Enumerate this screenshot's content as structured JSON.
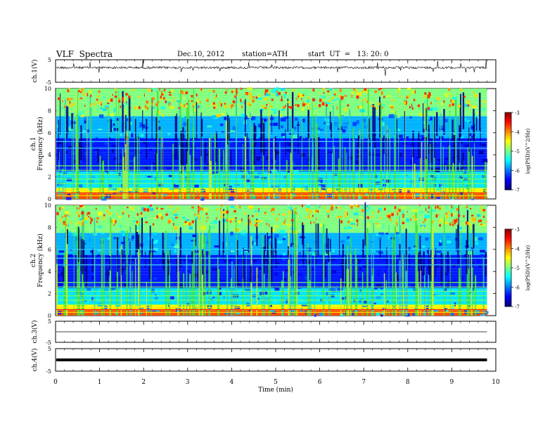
{
  "header": {
    "title": "VLF  Spectra",
    "date": "Dec.10, 2012",
    "station": "station=ATH",
    "start": "start  UT  =   13: 20: 0"
  },
  "chart_data": [
    {
      "type": "line",
      "ylabel": "ch.1(V)",
      "ylim": [
        -5,
        5
      ],
      "yticks": [
        "5",
        "-5"
      ],
      "xlim": [
        0,
        10
      ],
      "baseline_value": 1.5,
      "color": "#000000"
    },
    {
      "type": "heatmap",
      "ylabel": "ch.1",
      "ylabel2": "Frequency  (kHz)",
      "ylim": [
        0,
        10
      ],
      "yticks": [
        "0",
        "2",
        "4",
        "6",
        "8",
        "10"
      ],
      "xlim": [
        0,
        10
      ],
      "data_end_min": 9.8,
      "colorbar": {
        "label": "log(PSD)(V^2/Hz)",
        "range": [
          -7,
          -3
        ],
        "ticks": [
          "-3",
          "-4",
          "-5",
          "-6",
          "-7"
        ]
      }
    },
    {
      "type": "heatmap",
      "ylabel": "ch.2",
      "ylabel2": "Frequency  (kHz)",
      "ylim": [
        0,
        10
      ],
      "yticks": [
        "0",
        "2",
        "4",
        "6",
        "8",
        "10"
      ],
      "xlim": [
        0,
        10
      ],
      "data_end_min": 9.8,
      "colorbar": {
        "label": "log(PSD)(V^2/Hz)",
        "range": [
          -7,
          -3
        ],
        "ticks": [
          "-3",
          "-4",
          "-5",
          "-6",
          "-7"
        ]
      }
    },
    {
      "type": "line",
      "ylabel": "ch.3(V)",
      "ylim": [
        -5,
        5
      ],
      "yticks": [
        "5",
        "-5"
      ],
      "xlim": [
        0,
        10
      ],
      "baseline_value": 0,
      "color": "#000000"
    },
    {
      "type": "line",
      "ylabel": "ch.4(V)",
      "ylim": [
        -5,
        5
      ],
      "yticks": [
        "5",
        "-5"
      ],
      "xlim": [
        0,
        10
      ],
      "baseline_value": 0,
      "color": "#000000",
      "xlabel": "Time  (min)",
      "xticks": [
        "0",
        "1",
        "2",
        "3",
        "4",
        "5",
        "6",
        "7",
        "8",
        "9",
        "10"
      ]
    }
  ]
}
